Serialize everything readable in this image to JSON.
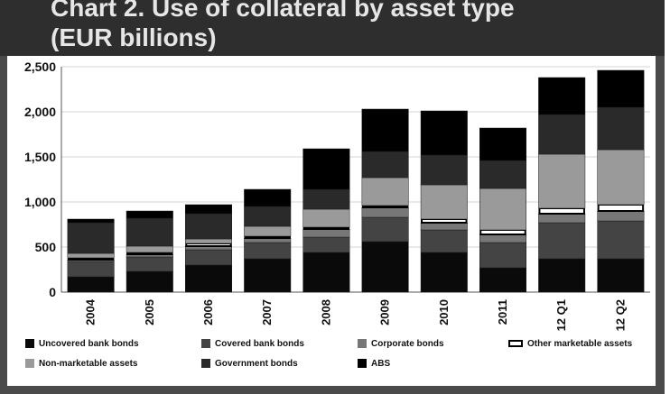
{
  "title": {
    "line1": "Chart 2. Use of collateral by asset type",
    "line2": "(EUR billions)"
  },
  "chart_data": {
    "type": "bar",
    "stacked": true,
    "title": "Chart 2. Use of collateral by asset type (EUR billions)",
    "categories": [
      "2004",
      "2005",
      "2006",
      "2007",
      "2008",
      "2009",
      "2010",
      "2011",
      "12 Q1",
      "12 Q2"
    ],
    "ylim": [
      0,
      2500
    ],
    "yticks": [
      "0",
      "500",
      "1,000",
      "1,500",
      "2,000",
      "2,500"
    ],
    "ytick_values": [
      0,
      500,
      1000,
      1500,
      2000,
      2500
    ],
    "grid": true,
    "legend_position": "bottom",
    "series": [
      {
        "name": "Uncovered bank bonds",
        "color": "#0a0a0a",
        "values": [
          170,
          230,
          300,
          370,
          440,
          560,
          440,
          270,
          370,
          370
        ]
      },
      {
        "name": "Covered bank bonds",
        "color": "#444444",
        "values": [
          170,
          160,
          170,
          180,
          170,
          270,
          250,
          280,
          400,
          420
        ]
      },
      {
        "name": "Corporate bonds",
        "color": "#777777",
        "values": [
          20,
          30,
          40,
          50,
          90,
          110,
          80,
          90,
          100,
          110
        ]
      },
      {
        "name": "Other marketable assets",
        "color": "#ffffff",
        "outlined": true,
        "values": [
          20,
          20,
          30,
          20,
          20,
          20,
          40,
          50,
          60,
          70
        ]
      },
      {
        "name": "Non-marketable assets",
        "color": "#9a9a9a",
        "values": [
          50,
          70,
          50,
          110,
          200,
          310,
          380,
          460,
          600,
          610
        ]
      },
      {
        "name": "Government bonds",
        "color": "#2a2a2a",
        "values": [
          340,
          310,
          280,
          220,
          220,
          290,
          330,
          310,
          440,
          470
        ]
      },
      {
        "name": "ABS",
        "color": "#000000",
        "values": [
          40,
          80,
          100,
          190,
          450,
          470,
          490,
          360,
          410,
          410
        ]
      }
    ],
    "xlabel": "",
    "ylabel": ""
  }
}
